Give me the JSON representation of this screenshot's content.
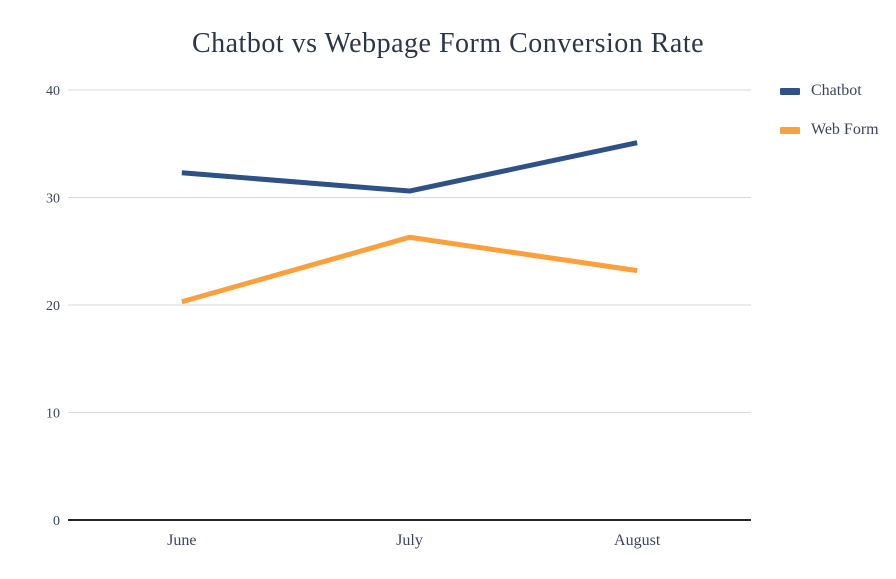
{
  "title": "Chatbot vs Webpage Form Conversion Rate",
  "chart_data": {
    "type": "line",
    "categories": [
      "June",
      "July",
      "August"
    ],
    "series": [
      {
        "name": "Chatbot",
        "color": "#2E5187",
        "values": [
          32.3,
          30.6,
          35.1
        ]
      },
      {
        "name": "Web Form",
        "color": "#FBA03C",
        "values": [
          20.3,
          26.3,
          23.2
        ]
      }
    ],
    "ylim": [
      0,
      40
    ],
    "yticks": [
      0,
      10,
      20,
      30,
      40
    ],
    "grid": true,
    "legend_position": "right",
    "xlabel": "",
    "ylabel": ""
  },
  "colors": {
    "grid": "#D9D9D9",
    "axis": "#262626",
    "tick_text": "#3B4559",
    "title_text": "#2D3646",
    "background": "#FFFFFF"
  }
}
